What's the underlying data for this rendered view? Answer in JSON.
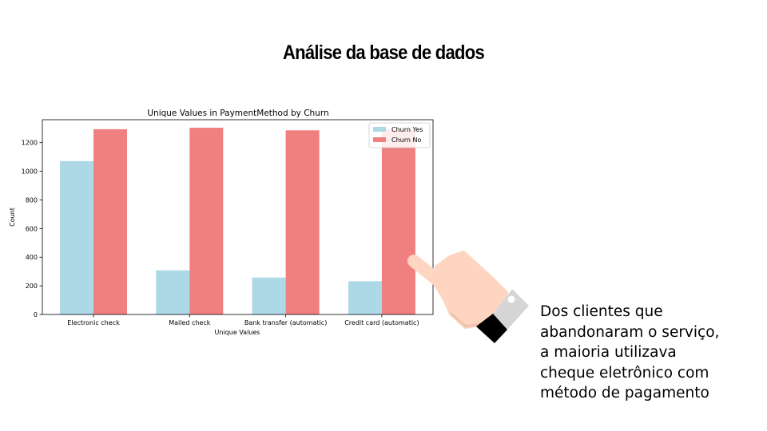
{
  "slide": {
    "title": "Análise da base de dados",
    "caption_lines": [
      "Dos clientes que",
      "abandonaram  o serviço,",
      "a maioria utilizava",
      "cheque eletrônico com",
      "método de pagamento"
    ]
  },
  "icons": {
    "pointer": "pointing-hand-icon"
  },
  "chart_data": {
    "type": "bar",
    "title": "Unique Values in PaymentMethod by Churn",
    "xlabel": "Unique Values",
    "ylabel": "Count",
    "categories": [
      "Electronic check",
      "Mailed check",
      "Bank transfer (automatic)",
      "Credit card (automatic)"
    ],
    "series": [
      {
        "name": "Churn Yes",
        "color": "#add8e6",
        "values": [
          1071,
          308,
          258,
          232
        ]
      },
      {
        "name": "Churn No",
        "color": "#f08080",
        "values": [
          1294,
          1304,
          1286,
          1290
        ]
      }
    ],
    "ylim": [
      0,
      1360
    ],
    "yticks": [
      0,
      200,
      400,
      600,
      800,
      1000,
      1200
    ],
    "legend": "top-right",
    "grid": false
  }
}
